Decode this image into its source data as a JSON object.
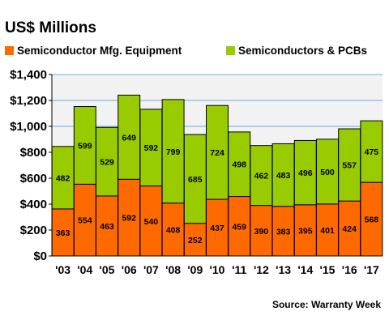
{
  "title": "US$ Millions",
  "source": "Source: Warranty Week",
  "colors": {
    "equipment": "#FF6A00",
    "semis": "#99CC00",
    "grid": "#6FA8DC",
    "plot_bg": "#F2F2F2"
  },
  "chart_data": {
    "type": "bar",
    "stacked": true,
    "categories": [
      "'03",
      "'04",
      "'05",
      "'06",
      "'07",
      "'08",
      "'09",
      "'10",
      "'11",
      "'12",
      "'13",
      "'14",
      "'15",
      "'16",
      "'17"
    ],
    "series": [
      {
        "name": "Semiconductor Mfg. Equipment",
        "color": "#FF6A00",
        "values": [
          363,
          554,
          463,
          592,
          540,
          408,
          252,
          437,
          459,
          390,
          383,
          395,
          401,
          424,
          568
        ]
      },
      {
        "name": "Semiconductors & PCBs",
        "color": "#99CC00",
        "values": [
          482,
          599,
          529,
          649,
          592,
          799,
          685,
          724,
          498,
          462,
          483,
          496,
          500,
          557,
          475
        ]
      }
    ],
    "ylim": [
      0,
      1400
    ],
    "yticks": [
      0,
      200,
      400,
      600,
      800,
      1000,
      1200,
      1400
    ],
    "ytick_labels": [
      "$0",
      "$200",
      "$400",
      "$600",
      "$800",
      "$1,000",
      "$1,200",
      "$1,400"
    ],
    "grid": true,
    "legend_position": "top"
  }
}
